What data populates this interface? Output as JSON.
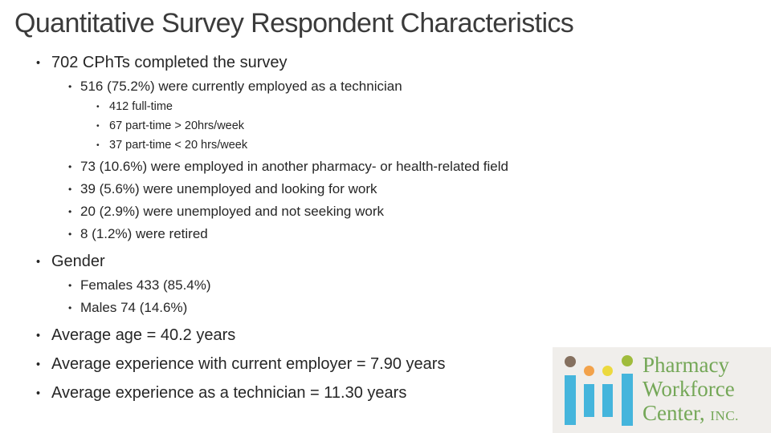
{
  "slide": {
    "title": "Quantitative Survey Respondent Characteristics",
    "bullets": [
      {
        "level": 1,
        "text": "702 CPhTs completed the survey"
      },
      {
        "level": 2,
        "text": "516 (75.2%) were currently employed as a technician"
      },
      {
        "level": 3,
        "text": "412 full-time"
      },
      {
        "level": 3,
        "text": "67 part-time > 20hrs/week"
      },
      {
        "level": 3,
        "text": "37 part-time < 20 hrs/week"
      },
      {
        "level": 2,
        "text": "73 (10.6%) were employed in another pharmacy- or health-related field"
      },
      {
        "level": 2,
        "text": "39 (5.6%) were unemployed and looking for work"
      },
      {
        "level": 2,
        "text": "20 (2.9%) were unemployed and not seeking work"
      },
      {
        "level": 2,
        "text": "8 (1.2%) were retired"
      },
      {
        "level": 1,
        "text": "Gender"
      },
      {
        "level": 2,
        "text": "Females 433 (85.4%)"
      },
      {
        "level": 2,
        "text": "Males 74 (14.6%)"
      },
      {
        "level": 1,
        "text": "Average age = 40.2 years"
      },
      {
        "level": 1,
        "text": "Average experience with current employer = 7.90 years"
      },
      {
        "level": 1,
        "text": "Average experience as a technician = 11.30 years"
      }
    ]
  },
  "logo": {
    "org_name": "Pharmacy Workforce Center, INC.",
    "lines": [
      "Pharmacy",
      "Workforce",
      "Center,"
    ],
    "suffix": "INC.",
    "colors": {
      "panel_background": "#f0eeeb",
      "text_green": "#74a757",
      "bar_blue": "#45b5dc",
      "dots": [
        "#85705f",
        "#f2a24b",
        "#ecd93e",
        "#a0bc3c"
      ]
    }
  }
}
